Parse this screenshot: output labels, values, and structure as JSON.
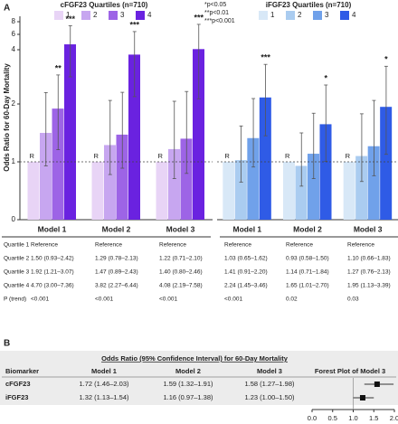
{
  "panel_a": {
    "label": "A",
    "footnote": [
      "*p<0.05",
      "**p<0.01",
      "***p<0.001"
    ]
  },
  "chart_data": [
    {
      "type": "bar",
      "legend_title": "cFGF23 Quartiles (n=710)",
      "y_label": "Odds Ratio for 60-Day Mortality",
      "categories": [
        "Model 1",
        "Model 2",
        "Model 3"
      ],
      "ylim": [
        0,
        8
      ],
      "yticks": [
        0,
        1,
        2,
        4,
        6,
        8
      ],
      "reference_line": 1,
      "reference_label": "R",
      "series": [
        {
          "name": "1",
          "color": "#e8d4f6",
          "values": [
            1,
            1,
            1
          ],
          "ci_low": [
            null,
            null,
            null
          ],
          "ci_high": [
            null,
            null,
            null
          ]
        },
        {
          "name": "2",
          "color": "#c7a6f0",
          "values": [
            1.5,
            1.29,
            1.22
          ],
          "ci_low": [
            0.93,
            0.78,
            0.71
          ],
          "ci_high": [
            2.42,
            2.13,
            2.1
          ]
        },
        {
          "name": "3",
          "color": "#9d64e6",
          "values": [
            1.92,
            1.47,
            1.4
          ],
          "ci_low": [
            1.21,
            0.89,
            0.8
          ],
          "ci_high": [
            3.07,
            2.43,
            2.46
          ],
          "annotations": [
            "**",
            null,
            null
          ]
        },
        {
          "name": "4",
          "color": "#6a22e0",
          "values": [
            4.7,
            3.82,
            4.08
          ],
          "ci_low": [
            3.0,
            2.27,
            2.19
          ],
          "ci_high": [
            7.36,
            6.44,
            7.58
          ],
          "annotations": [
            "***",
            "***",
            "***"
          ]
        }
      ]
    },
    {
      "type": "bar",
      "legend_title": "iFGF23 Quartiles (n=710)",
      "categories": [
        "Model 1",
        "Model 2",
        "Model 3"
      ],
      "ylim": [
        0,
        8
      ],
      "reference_line": 1,
      "reference_label": "R",
      "series": [
        {
          "name": "1",
          "color": "#d8e8f7",
          "values": [
            1,
            1,
            1
          ],
          "ci_low": [
            null,
            null,
            null
          ],
          "ci_high": [
            null,
            null,
            null
          ]
        },
        {
          "name": "2",
          "color": "#aaccf0",
          "values": [
            1.03,
            0.93,
            1.1
          ],
          "ci_low": [
            0.65,
            0.58,
            0.66
          ],
          "ci_high": [
            1.62,
            1.5,
            1.83
          ]
        },
        {
          "name": "3",
          "color": "#70a1ea",
          "values": [
            1.41,
            1.14,
            1.27
          ],
          "ci_low": [
            0.91,
            0.71,
            0.76
          ],
          "ci_high": [
            2.2,
            1.84,
            2.13
          ]
        },
        {
          "name": "4",
          "color": "#2f5be6",
          "values": [
            2.24,
            1.65,
            1.95
          ],
          "ci_low": [
            1.45,
            1.01,
            1.13
          ],
          "ci_high": [
            3.46,
            2.7,
            3.39
          ],
          "annotations": [
            "***",
            "*",
            "*"
          ]
        }
      ]
    },
    {
      "type": "forest",
      "values": [
        1.58,
        1.23
      ],
      "ci_low": [
        1.27,
        1.0
      ],
      "ci_high": [
        1.98,
        1.5
      ],
      "xlim": [
        0,
        2
      ],
      "xticks": [
        {
          "value": 0,
          "label": "0.0"
        },
        0.5,
        {
          "value": 1,
          "label": "1.0"
        },
        1.5,
        {
          "value": 2,
          "label": "2.0"
        }
      ],
      "reference_line": 1
    }
  ],
  "table_a": {
    "row_labels": [
      "Quartile 1",
      "Quartile 2",
      "Quartile 3",
      "Quartile 4",
      "P (trend)"
    ],
    "left": [
      [
        "Reference",
        "Reference",
        "Reference"
      ],
      [
        "1.50 (0.93–2.42)",
        "1.29 (0.78–2.13)",
        "1.22 (0.71–2.10)"
      ],
      [
        "1.92 (1.21–3.07)",
        "1.47 (0.89–2.43)",
        "1.40 (0.80–2.46)"
      ],
      [
        "4.70 (3.00–7.36)",
        "3.82 (2.27–6.44)",
        "4.08 (2.19–7.58)"
      ],
      [
        "<0.001",
        "<0.001",
        "<0.001"
      ]
    ],
    "right": [
      [
        "Reference",
        "Reference",
        "Reference"
      ],
      [
        "1.03 (0.65–1.62)",
        "0.93 (0.58–1.50)",
        "1.10 (0.66–1.83)"
      ],
      [
        "1.41 (0.91–2.20)",
        "1.14 (0.71–1.84)",
        "1.27 (0.76–2.13)"
      ],
      [
        "2.24 (1.45–3.46)",
        "1.65 (1.01–2.70)",
        "1.95 (1.13–3.39)"
      ],
      [
        "<0.001",
        "0.02",
        "0.03"
      ]
    ]
  },
  "panel_b": {
    "label": "B",
    "title": "Odds Ratio (95% Confidence Interval) for 60-Day Mortality",
    "headers": [
      "Biomarker",
      "Model 1",
      "Model 2",
      "Model 3",
      "Forest Plot of Model 3"
    ],
    "rows": [
      [
        "cFGF23",
        "1.72 (1.46–2.03)",
        "1.59 (1.32–1.91)",
        "1.58 (1.27–1.98)"
      ],
      [
        "iFGF23",
        "1.32 (1.13–1.54)",
        "1.16 (0.97–1.38)",
        "1.23 (1.00–1.50)"
      ]
    ]
  }
}
